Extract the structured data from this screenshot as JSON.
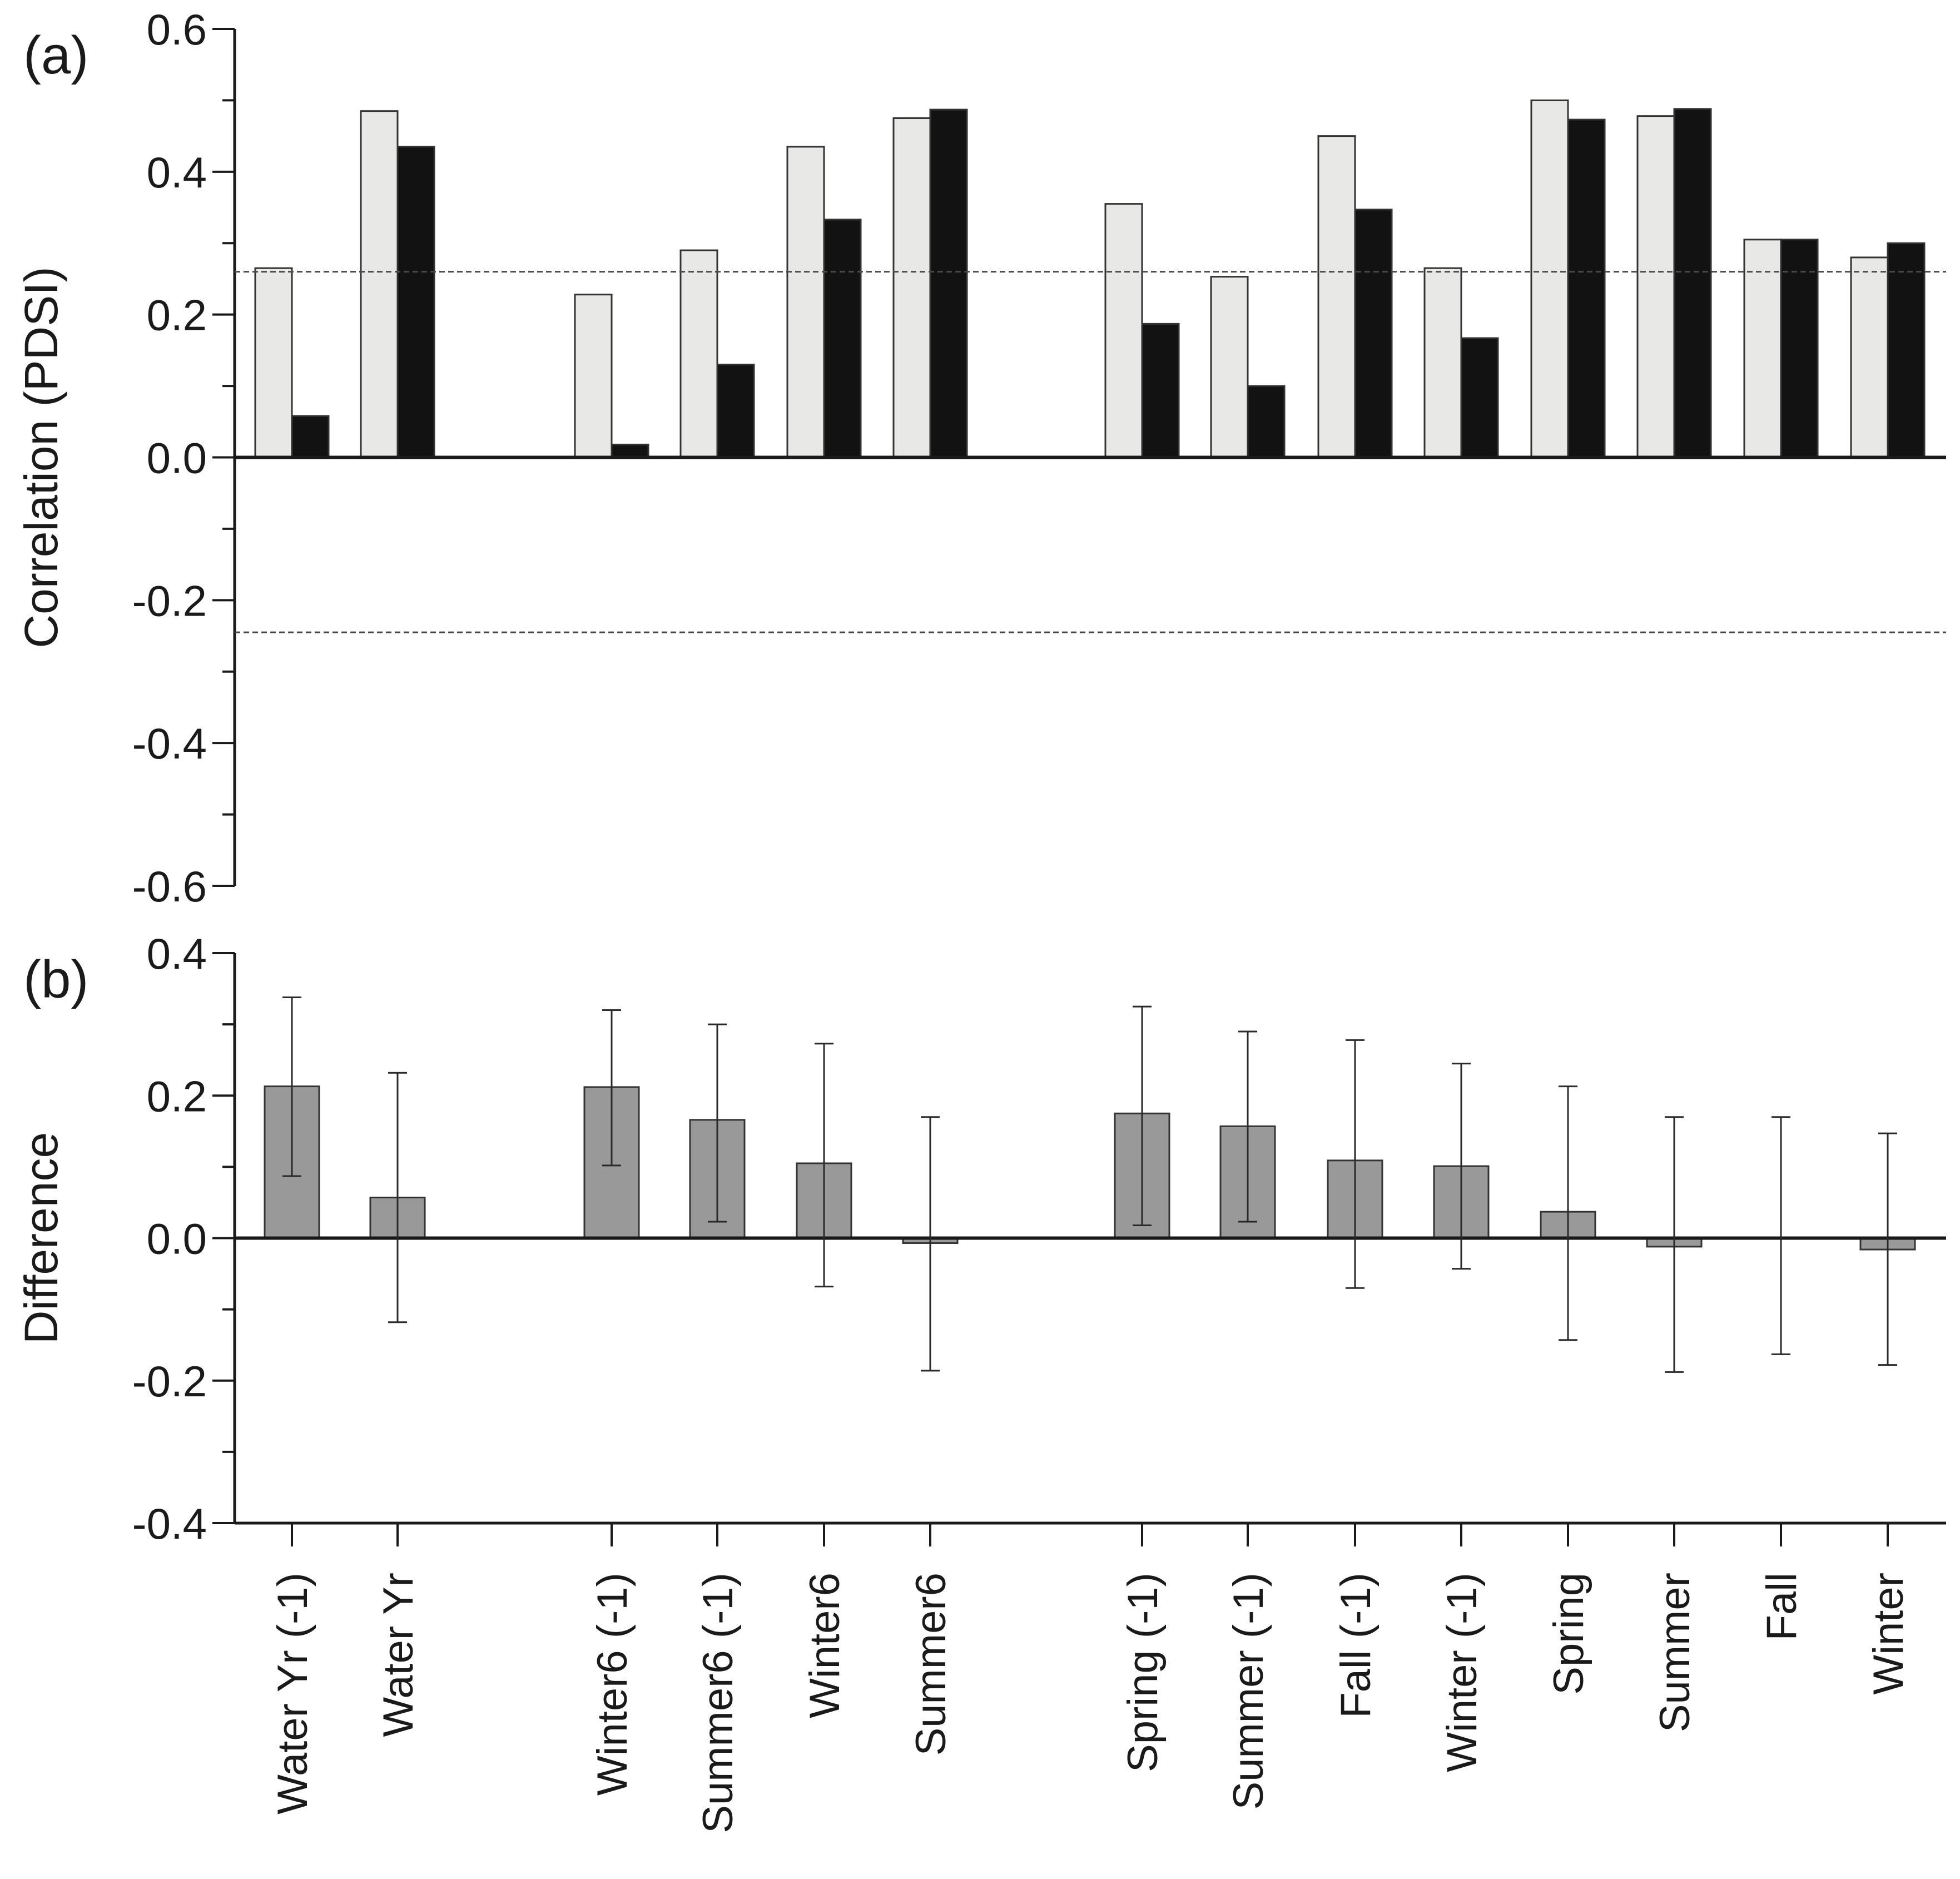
{
  "chart_data": [
    {
      "type": "bar",
      "panel_label": "(a)",
      "ylabel": "Correlation (PDSI)",
      "ylim": [
        -0.6,
        0.6
      ],
      "yticks": [
        0.6,
        0.4,
        0.2,
        0.0,
        -0.2,
        -0.4,
        -0.6
      ],
      "ytick_labels": [
        "0.6",
        "0.4",
        "0.2",
        "0.0",
        "-0.2",
        "-0.4",
        "-0.6"
      ],
      "grid": false,
      "significance_lines": [
        0.26,
        -0.245
      ],
      "categories": [
        "Water Yr (-1)",
        "Water Yr",
        "Winter6 (-1)",
        "Summer6 (-1)",
        "Winter6",
        "Summer6",
        "Spring (-1)",
        "Summer (-1)",
        "Fall (-1)",
        "Winter (-1)",
        "Spring",
        "Summer",
        "Fall",
        "Winter"
      ],
      "groups": [
        [
          0,
          1
        ],
        [
          2,
          3,
          4,
          5
        ],
        [
          6,
          7,
          8,
          9,
          10,
          11,
          12,
          13
        ]
      ],
      "series": [
        {
          "name": "series-light",
          "color": "#e8e8e6",
          "values": [
            0.265,
            0.485,
            0.228,
            0.29,
            0.435,
            0.475,
            0.355,
            0.253,
            0.45,
            0.265,
            0.5,
            0.478,
            0.305,
            0.28
          ]
        },
        {
          "name": "series-dark",
          "color": "#121212",
          "values": [
            0.058,
            0.435,
            0.018,
            0.13,
            0.333,
            0.487,
            0.187,
            0.1,
            0.347,
            0.167,
            0.473,
            0.488,
            0.305,
            0.3
          ]
        }
      ]
    },
    {
      "type": "bar",
      "panel_label": "(b)",
      "ylabel": "Difference",
      "ylim": [
        -0.4,
        0.4
      ],
      "yticks": [
        0.4,
        0.2,
        0.0,
        -0.2,
        -0.4
      ],
      "ytick_labels": [
        "0.4",
        "0.2",
        "0.0",
        "-0.2",
        "-0.4"
      ],
      "grid": false,
      "categories": [
        "Water Yr (-1)",
        "Water Yr",
        "Winter6 (-1)",
        "Summer6 (-1)",
        "Winter6",
        "Summer6",
        "Spring (-1)",
        "Summer (-1)",
        "Fall (-1)",
        "Winter (-1)",
        "Spring",
        "Summer",
        "Fall",
        "Winter"
      ],
      "groups": [
        [
          0,
          1
        ],
        [
          2,
          3,
          4,
          5
        ],
        [
          6,
          7,
          8,
          9,
          10,
          11,
          12,
          13
        ]
      ],
      "series": [
        {
          "name": "difference",
          "color": "#999999",
          "values": [
            0.213,
            0.057,
            0.212,
            0.166,
            0.105,
            -0.007,
            0.175,
            0.157,
            0.109,
            0.101,
            0.037,
            -0.012,
            0.0,
            -0.016
          ]
        }
      ],
      "error_bars": {
        "low": [
          0.087,
          -0.118,
          0.102,
          0.023,
          -0.068,
          -0.186,
          0.018,
          0.023,
          -0.07,
          -0.043,
          -0.143,
          -0.188,
          -0.163,
          -0.178
        ],
        "high": [
          0.338,
          0.232,
          0.32,
          0.3,
          0.273,
          0.17,
          0.325,
          0.29,
          0.278,
          0.245,
          0.213,
          0.17,
          0.17,
          0.147
        ]
      }
    }
  ]
}
